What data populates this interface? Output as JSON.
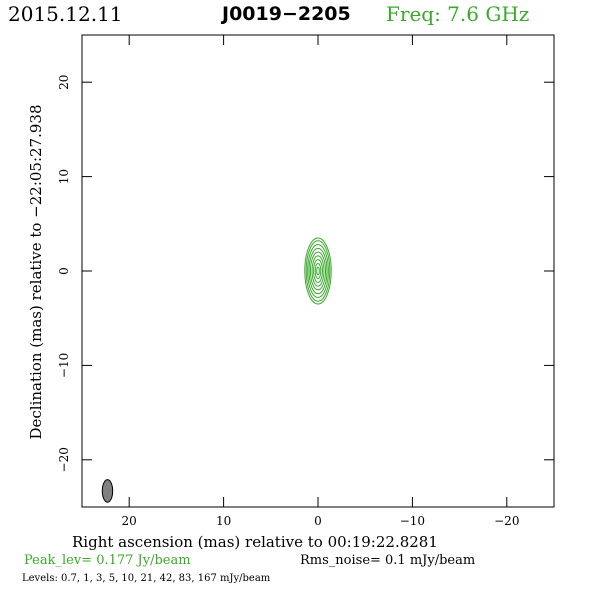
{
  "header": {
    "date": "2015.12.11",
    "source": "J0019−2205",
    "frequency": "Freq: 7.6 GHz"
  },
  "footer": {
    "peak": "Peak_lev=  0.177 Jy/beam",
    "rms": "Rms_noise=   0.1 mJy/beam",
    "levels": "Levels: 0.7,    1,    3,    5,   10,   21,   42,   83,  167 mJy/beam"
  },
  "colors": {
    "contour": "#3aaa2a",
    "beam_fill": "#808080",
    "frame": "#000000"
  },
  "chart_data": {
    "type": "contour",
    "title": "J0019−2205",
    "xlabel": "Right ascension (mas) relative to 00:19:22.8281",
    "ylabel": "Declination (mas) relative to −22:05:27.938",
    "xlim": [
      25,
      -25
    ],
    "ylim": [
      -25,
      25
    ],
    "x_ticks": [
      {
        "value": 20,
        "label": "20"
      },
      {
        "value": 10,
        "label": "10"
      },
      {
        "value": 0,
        "label": "0"
      },
      {
        "value": -10,
        "label": "−10"
      },
      {
        "value": -20,
        "label": "−20"
      }
    ],
    "y_ticks": [
      {
        "value": 20,
        "label": "20"
      },
      {
        "value": 10,
        "label": "10"
      },
      {
        "value": 0,
        "label": "0"
      },
      {
        "value": -10,
        "label": "−10"
      },
      {
        "value": -20,
        "label": "−20"
      }
    ],
    "grid": false,
    "contour_levels_mJy": [
      0.7,
      1,
      3,
      5,
      10,
      21,
      42,
      83,
      167
    ],
    "source_center": [
      0,
      0
    ],
    "contours": [
      {
        "level": 0.7,
        "semi_major": 3.5,
        "semi_minor": 1.4
      },
      {
        "level": 1,
        "semi_major": 3.2,
        "semi_minor": 1.25
      },
      {
        "level": 3,
        "semi_major": 2.8,
        "semi_minor": 1.1
      },
      {
        "level": 5,
        "semi_major": 2.4,
        "semi_minor": 0.95
      },
      {
        "level": 10,
        "semi_major": 2.0,
        "semi_minor": 0.8
      },
      {
        "level": 21,
        "semi_major": 1.6,
        "semi_minor": 0.63
      },
      {
        "level": 42,
        "semi_major": 1.2,
        "semi_minor": 0.47
      },
      {
        "level": 83,
        "semi_major": 0.8,
        "semi_minor": 0.3
      },
      {
        "level": 167,
        "semi_major": 0.4,
        "semi_minor": 0.14
      }
    ],
    "beam": {
      "center": [
        22.3,
        -23.3
      ],
      "major": 2.4,
      "minor": 1.1,
      "pa_deg": 0
    }
  }
}
